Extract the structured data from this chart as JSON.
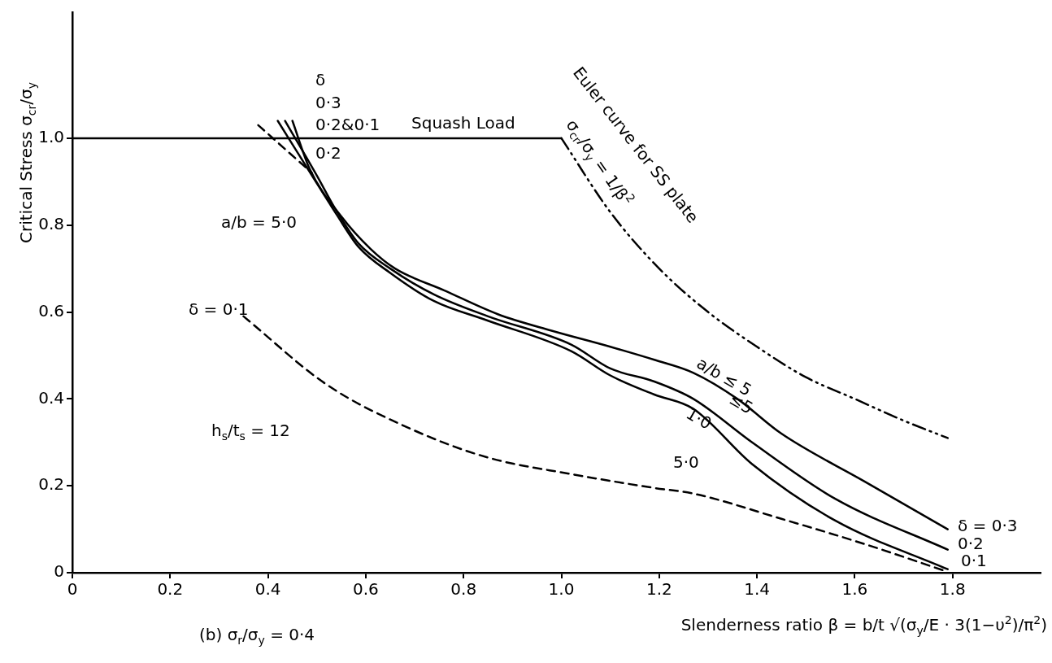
{
  "chart_data": {
    "type": "line",
    "xlabel": "Slenderness ratio β = b/t √(σ$_{y}$/E · 3(1−υ$^{2}$)/π$^{2}$)",
    "ylabel": "Critical Stress σ$_{cr}$/σ$_{y}$",
    "xlim": [
      0,
      1.98
    ],
    "ylim": [
      0,
      1.29
    ],
    "xticks": [
      0,
      0.2,
      0.4,
      0.6,
      0.8,
      {
        "value": 1,
        "label": "1.0"
      },
      1.2,
      1.4,
      1.6,
      1.8
    ],
    "yticks": [
      0,
      0.2,
      0.4,
      0.6,
      0.8,
      {
        "value": 1,
        "label": "1.0"
      }
    ],
    "grid": false,
    "legend": false,
    "marker": "none",
    "series": [
      {
        "type": "line",
        "line_style": "solid",
        "color": "#000000",
        "x": [
          0,
          1.0
        ],
        "values": [
          1.0,
          1.0
        ]
      },
      {
        "type": "line",
        "line_style": "dashdot",
        "color": "#000000",
        "x": [
          1.0,
          1.1,
          1.2,
          1.3,
          1.4,
          1.5,
          1.6,
          1.7,
          1.79
        ],
        "values": [
          1.0,
          0.83,
          0.7,
          0.6,
          0.52,
          0.45,
          0.4,
          0.35,
          0.31
        ]
      },
      {
        "type": "line",
        "line_style": "solid",
        "color": "#000000",
        "x": [
          0.45,
          0.485,
          0.55,
          0.61,
          0.66,
          0.76,
          0.87,
          0.98,
          1.1,
          1.19,
          1.27,
          1.36,
          1.45,
          1.62,
          1.79
        ],
        "values": [
          1.04,
          0.93,
          0.82,
          0.745,
          0.7,
          0.65,
          0.595,
          0.557,
          0.52,
          0.49,
          0.46,
          0.4,
          0.32,
          0.21,
          0.1
        ]
      },
      {
        "type": "line",
        "line_style": "solid",
        "color": "#000000",
        "x": [
          0.435,
          0.5,
          0.54,
          0.585,
          0.65,
          0.74,
          0.85,
          1.02,
          1.1,
          1.19,
          1.27,
          1.39,
          1.56,
          1.79
        ],
        "values": [
          1.04,
          0.914,
          0.833,
          0.758,
          0.7,
          0.64,
          0.59,
          0.525,
          0.47,
          0.44,
          0.4,
          0.3,
          0.17,
          0.053
        ]
      },
      {
        "type": "line",
        "line_style": "solid",
        "color": "#000000",
        "x": [
          0.42,
          0.49,
          0.54,
          0.585,
          0.65,
          0.74,
          0.85,
          1.02,
          1.1,
          1.19,
          1.27,
          1.39,
          1.56,
          1.79
        ],
        "values": [
          1.04,
          0.914,
          0.825,
          0.75,
          0.69,
          0.625,
          0.58,
          0.51,
          0.454,
          0.41,
          0.377,
          0.25,
          0.12,
          0.008
        ]
      },
      {
        "type": "line",
        "line_style": "dashed",
        "color": "#000000",
        "x": [
          0.38,
          0.43,
          0.49
        ],
        "values": [
          1.03,
          0.98,
          0.92
        ]
      },
      {
        "type": "line",
        "line_style": "dashed",
        "color": "#000000",
        "x": [
          0.35,
          0.52,
          0.69,
          0.85,
          1.02,
          1.19,
          1.27,
          1.45,
          1.62,
          1.79
        ],
        "values": [
          0.59,
          0.433,
          0.332,
          0.265,
          0.227,
          0.195,
          0.182,
          0.124,
          0.066,
          0.002
        ]
      }
    ],
    "annotations": [
      "δ",
      "0·3",
      "0·2&0·1",
      "Squash Load",
      "0·2",
      "a/b = 5·0",
      "Euler curve for SS plate",
      "σ$_{cr}$/σ$_{y}$ = 1/β$^{2}$",
      "δ = 0·1",
      "h$_{s}$/t$_{s}$ = 12",
      "5·0",
      "a/b ≤ 5",
      "≤5",
      "1·0",
      "δ = 0·3",
      "0·2",
      "0·1",
      "(b) σ$_{r}$/σ$_{y}$ = 0·4"
    ]
  }
}
